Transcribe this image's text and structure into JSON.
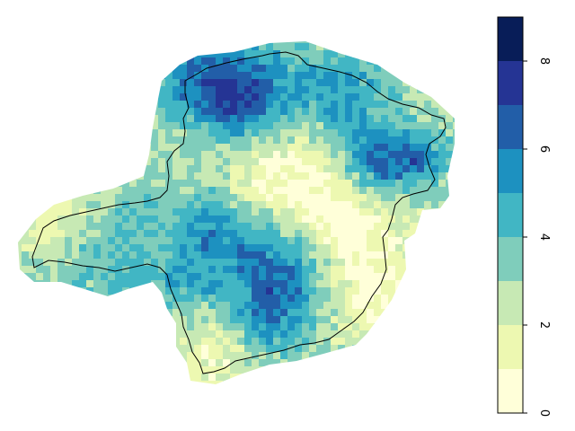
{
  "legend": {
    "min": 0,
    "max": 9,
    "bins": [
      {
        "from": 0,
        "to": 1,
        "color": "#ffffd9"
      },
      {
        "from": 1,
        "to": 2,
        "color": "#edf8b1"
      },
      {
        "from": 2,
        "to": 3,
        "color": "#c7e9b4"
      },
      {
        "from": 3,
        "to": 4,
        "color": "#7fcdbb"
      },
      {
        "from": 4,
        "to": 5,
        "color": "#41b6c4"
      },
      {
        "from": 5,
        "to": 6,
        "color": "#1d91c0"
      },
      {
        "from": 6,
        "to": 7,
        "color": "#225ea8"
      },
      {
        "from": 7,
        "to": 8,
        "color": "#253494"
      },
      {
        "from": 8,
        "to": 9,
        "color": "#081d58"
      }
    ],
    "tick_labels": [
      "0",
      "2",
      "4",
      "6",
      "8"
    ],
    "tick_values": [
      0,
      2,
      4,
      6,
      8
    ]
  },
  "map": {
    "type": "raster",
    "value_range": [
      0,
      9
    ],
    "has_boundary_outline": true,
    "boundary_color": "#000000",
    "background_color": "#ffffff"
  }
}
